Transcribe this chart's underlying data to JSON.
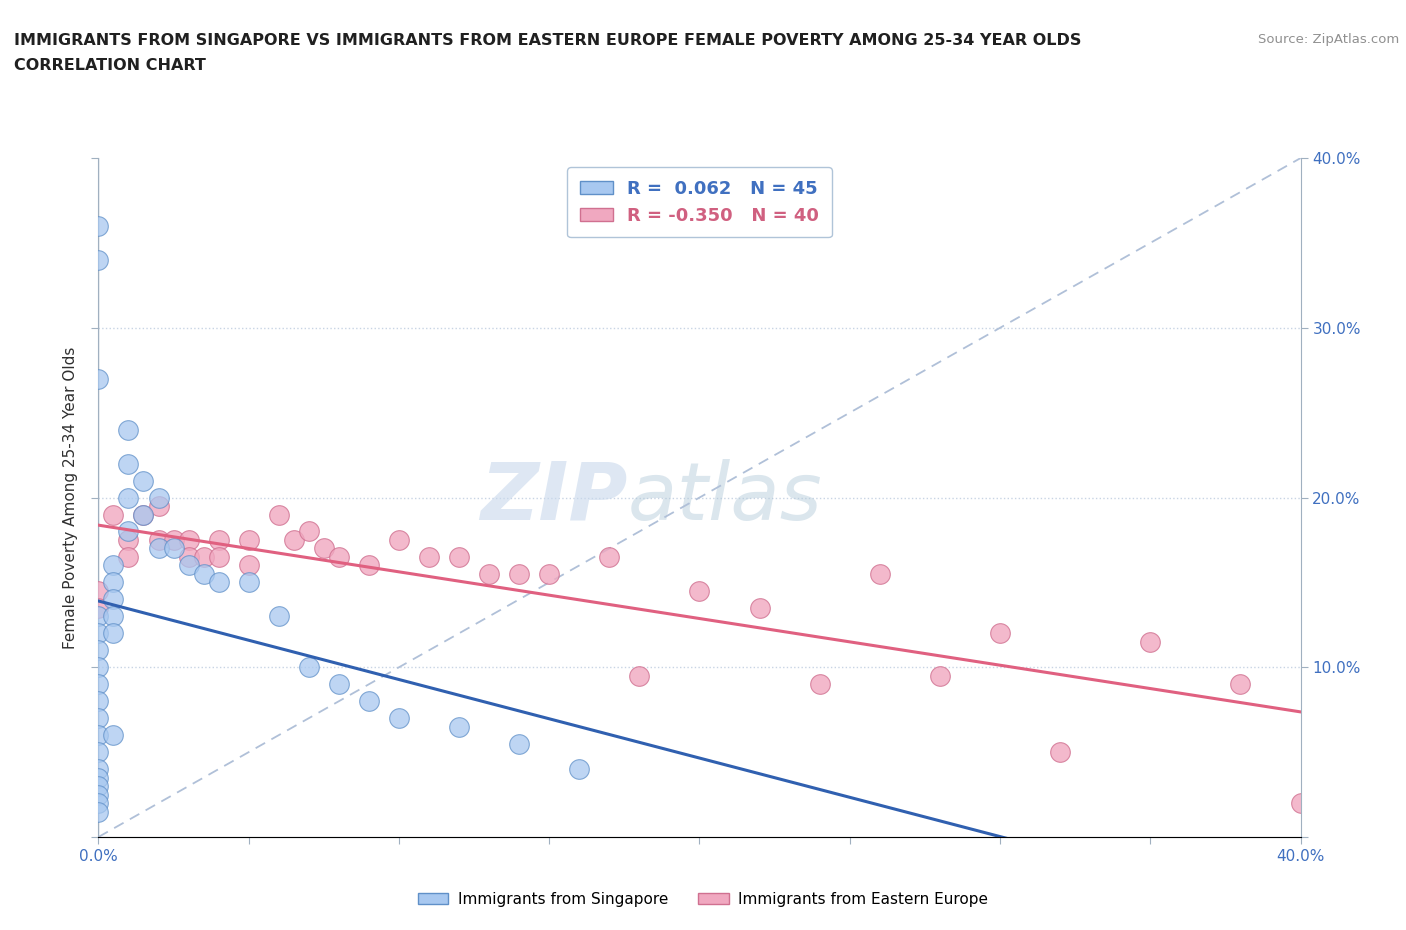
{
  "title_line1": "IMMIGRANTS FROM SINGAPORE VS IMMIGRANTS FROM EASTERN EUROPE FEMALE POVERTY AMONG 25-34 YEAR OLDS",
  "title_line2": "CORRELATION CHART",
  "source_text": "Source: ZipAtlas.com",
  "watermark_zip": "ZIP",
  "watermark_atlas": "atlas",
  "ylabel": "Female Poverty Among 25-34 Year Olds",
  "xlim": [
    0.0,
    0.4
  ],
  "ylim": [
    0.0,
    0.4
  ],
  "singapore_color": "#a8c8f0",
  "eastern_europe_color": "#f0a8c0",
  "singapore_edge": "#6090c8",
  "eastern_europe_edge": "#d07090",
  "blue_line_color": "#3060b0",
  "pink_line_color": "#e06080",
  "diag_color": "#b0c0d8",
  "grid_color": "#c8d4e4",
  "background_color": "#ffffff",
  "title_color": "#202020",
  "source_color": "#909090",
  "axis_color": "#a0b0c0",
  "tick_label_color": "#4070c0",
  "singapore_x": [
    0.0,
    0.0,
    0.0,
    0.0,
    0.0,
    0.0,
    0.0,
    0.0,
    0.0,
    0.0,
    0.0,
    0.0,
    0.0,
    0.0,
    0.0,
    0.0,
    0.0,
    0.0,
    0.005,
    0.005,
    0.005,
    0.005,
    0.005,
    0.005,
    0.01,
    0.01,
    0.01,
    0.01,
    0.015,
    0.015,
    0.02,
    0.02,
    0.025,
    0.03,
    0.035,
    0.04,
    0.05,
    0.06,
    0.07,
    0.08,
    0.09,
    0.1,
    0.12,
    0.14,
    0.16
  ],
  "singapore_y": [
    0.13,
    0.12,
    0.11,
    0.1,
    0.09,
    0.08,
    0.07,
    0.06,
    0.05,
    0.04,
    0.035,
    0.03,
    0.025,
    0.02,
    0.015,
    0.36,
    0.34,
    0.27,
    0.16,
    0.15,
    0.14,
    0.13,
    0.12,
    0.06,
    0.24,
    0.22,
    0.2,
    0.18,
    0.21,
    0.19,
    0.2,
    0.17,
    0.17,
    0.16,
    0.155,
    0.15,
    0.15,
    0.13,
    0.1,
    0.09,
    0.08,
    0.07,
    0.065,
    0.055,
    0.04
  ],
  "eastern_europe_x": [
    0.0,
    0.0,
    0.005,
    0.01,
    0.01,
    0.015,
    0.02,
    0.02,
    0.025,
    0.03,
    0.03,
    0.035,
    0.04,
    0.04,
    0.05,
    0.05,
    0.06,
    0.065,
    0.07,
    0.075,
    0.08,
    0.09,
    0.1,
    0.11,
    0.12,
    0.13,
    0.14,
    0.15,
    0.17,
    0.18,
    0.2,
    0.22,
    0.24,
    0.26,
    0.28,
    0.3,
    0.32,
    0.35,
    0.38,
    0.4
  ],
  "eastern_europe_y": [
    0.145,
    0.135,
    0.19,
    0.175,
    0.165,
    0.19,
    0.195,
    0.175,
    0.175,
    0.175,
    0.165,
    0.165,
    0.175,
    0.165,
    0.175,
    0.16,
    0.19,
    0.175,
    0.18,
    0.17,
    0.165,
    0.16,
    0.175,
    0.165,
    0.165,
    0.155,
    0.155,
    0.155,
    0.165,
    0.095,
    0.145,
    0.135,
    0.09,
    0.155,
    0.095,
    0.12,
    0.05,
    0.115,
    0.09,
    0.02
  ]
}
